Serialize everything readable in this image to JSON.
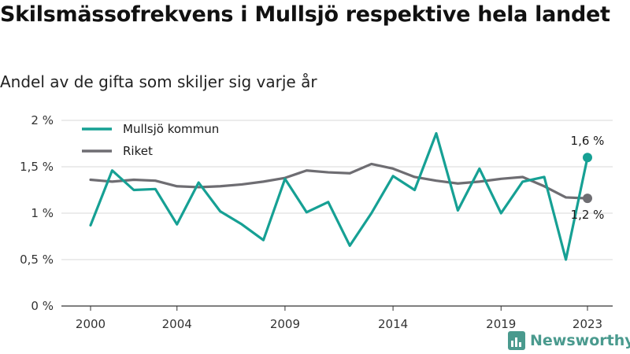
{
  "title": "Skilsmässofrekvens i Mullsjö respektive hela landet",
  "subtitle": "Andel av de gifta som skiljer sig varje år",
  "brand": "Newsworthy",
  "chart_data": {
    "type": "line",
    "x": [
      2000,
      2001,
      2002,
      2003,
      2004,
      2005,
      2006,
      2007,
      2008,
      2009,
      2010,
      2011,
      2012,
      2013,
      2014,
      2015,
      2016,
      2017,
      2018,
      2019,
      2020,
      2021,
      2022,
      2023
    ],
    "series": [
      {
        "name": "Mullsjö kommun",
        "color": "#16a094",
        "values": [
          0.87,
          1.46,
          1.25,
          1.26,
          0.88,
          1.33,
          1.02,
          0.88,
          0.71,
          1.37,
          1.01,
          1.12,
          0.65,
          1.0,
          1.4,
          1.25,
          1.86,
          1.03,
          1.48,
          1.0,
          1.34,
          1.39,
          0.5,
          1.6
        ]
      },
      {
        "name": "Riket",
        "color": "#6e6d72",
        "values": [
          1.36,
          1.34,
          1.36,
          1.35,
          1.29,
          1.28,
          1.29,
          1.31,
          1.34,
          1.38,
          1.46,
          1.44,
          1.43,
          1.53,
          1.48,
          1.39,
          1.35,
          1.32,
          1.34,
          1.37,
          1.39,
          1.29,
          1.17,
          1.16
        ]
      }
    ],
    "ylim": [
      0,
      2
    ],
    "yticks": [
      0,
      0.5,
      1,
      1.5,
      2
    ],
    "ytick_labels": [
      "0 %",
      "0,5 %",
      "1 %",
      "1,5 %",
      "2 %"
    ],
    "xticks": [
      2000,
      2004,
      2009,
      2014,
      2019,
      2023
    ],
    "xtick_labels": [
      "2000",
      "2004",
      "2009",
      "2014",
      "2019",
      "2023"
    ],
    "end_labels": [
      "1,6 %",
      "1,2 %"
    ],
    "grid": true,
    "legend_position": "top-left"
  }
}
